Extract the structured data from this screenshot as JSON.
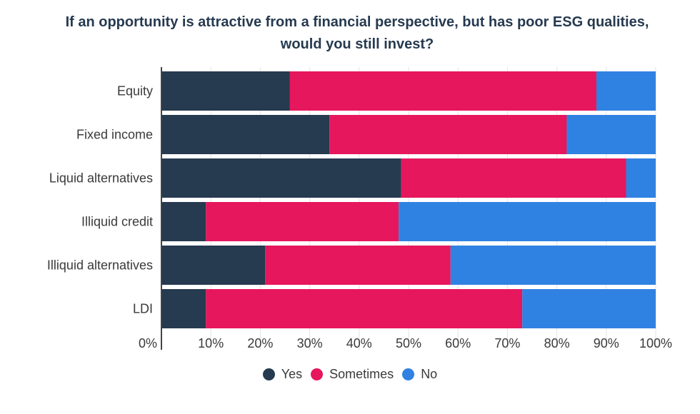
{
  "chart_data": {
    "type": "bar",
    "orientation": "horizontal",
    "stacked": true,
    "title": [
      "If an opportunity is attractive from a financial perspective, but has poor ESG qualities,",
      "would you still invest?"
    ],
    "categories": [
      "Equity",
      "Fixed income",
      "Liquid alternatives",
      "Illiquid credit",
      "Illiquid alternatives",
      "LDI"
    ],
    "series": [
      {
        "name": "Yes",
        "color": "#263a50",
        "values": [
          26,
          34,
          48.5,
          9,
          21,
          9
        ]
      },
      {
        "name": "Sometimes",
        "color": "#e6175c",
        "values": [
          62,
          48,
          45.5,
          39,
          37.5,
          64
        ]
      },
      {
        "name": "No",
        "color": "#3082e2",
        "values": [
          12,
          18,
          6,
          52,
          41.5,
          27
        ]
      }
    ],
    "xlim": [
      0,
      100
    ],
    "xticks": [
      "0%",
      "10%",
      "20%",
      "30%",
      "40%",
      "50%",
      "60%",
      "70%",
      "80%",
      "90%",
      "100%"
    ],
    "grid": true,
    "legend_position": "bottom"
  }
}
